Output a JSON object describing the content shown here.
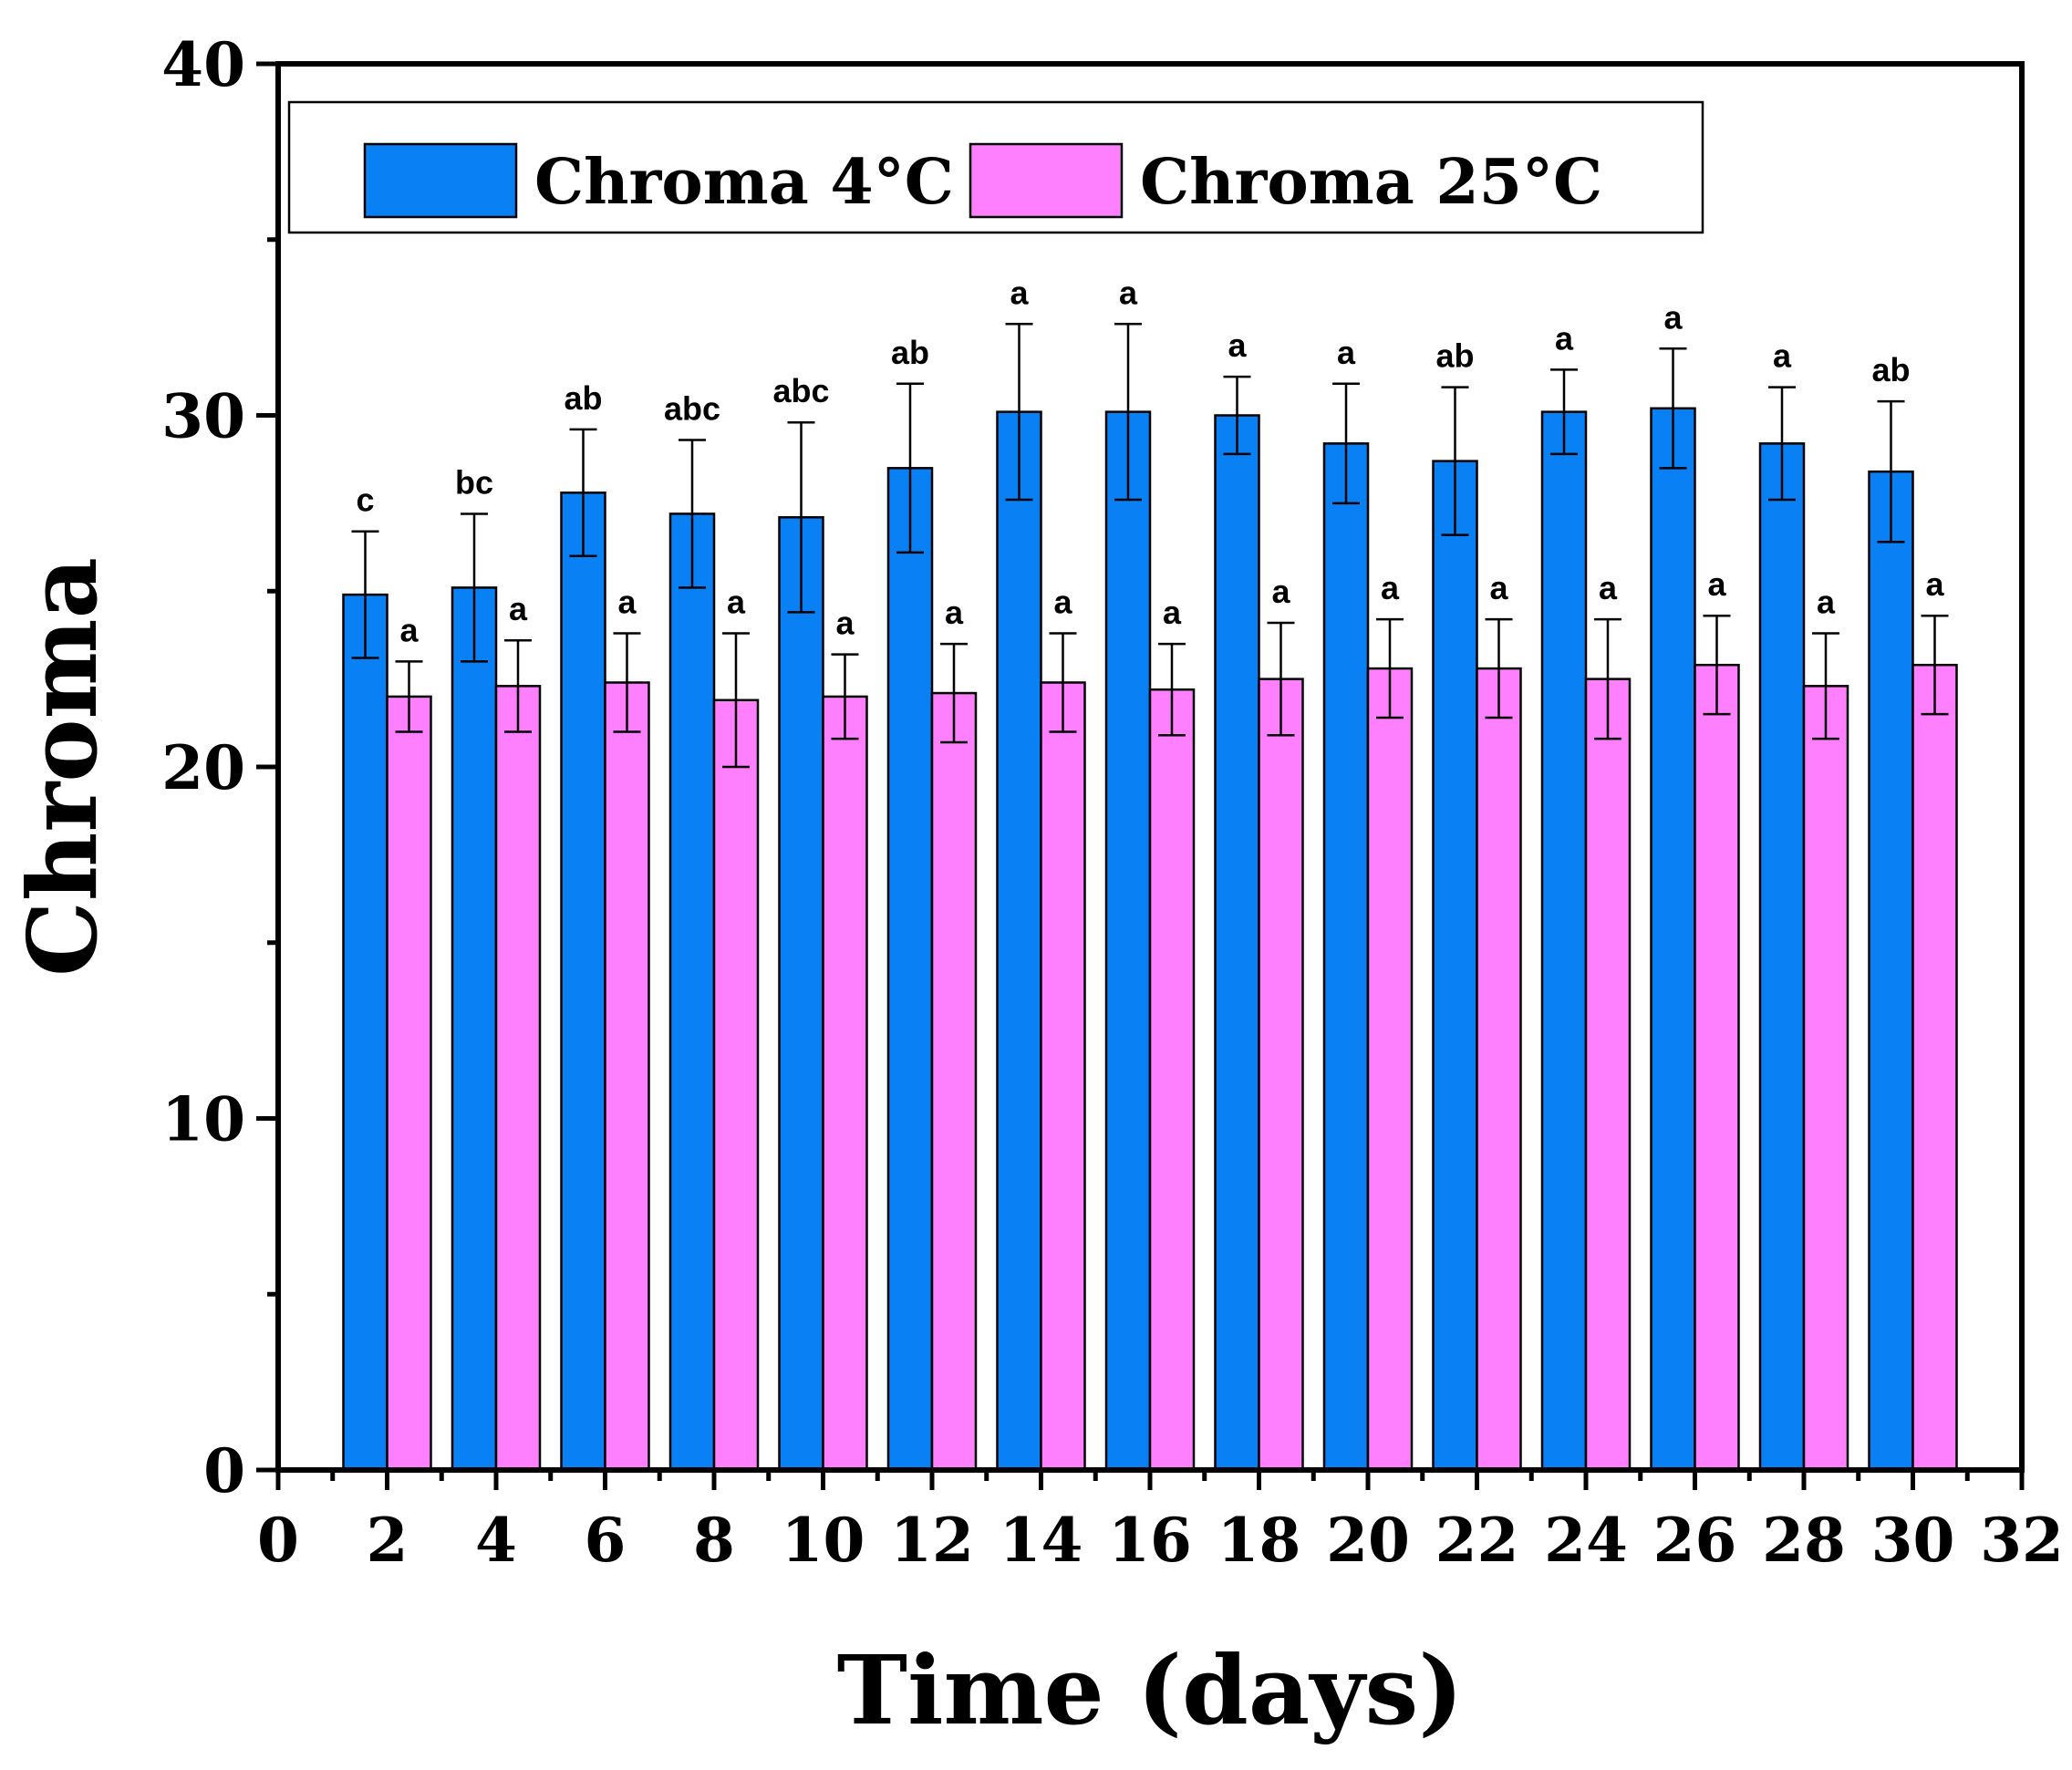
{
  "chart_data": {
    "type": "bar",
    "title": "",
    "xlabel": "Time (days)",
    "ylabel": "Chroma",
    "xlim": [
      0,
      32
    ],
    "ylim": [
      0,
      40
    ],
    "x_ticks": [
      "0",
      "2",
      "4",
      "6",
      "8",
      "10",
      "12",
      "14",
      "16",
      "18",
      "20",
      "22",
      "24",
      "26",
      "28",
      "30",
      "32"
    ],
    "y_ticks": [
      "0",
      "10",
      "20",
      "30",
      "40"
    ],
    "categories": [
      2,
      4,
      6,
      8,
      10,
      12,
      14,
      16,
      18,
      20,
      22,
      24,
      26,
      28,
      30
    ],
    "legend_position": "top",
    "series": [
      {
        "name": "Chroma 4°C",
        "color": "#0a80f5",
        "values": [
          24.9,
          25.1,
          27.8,
          27.2,
          27.1,
          28.5,
          30.1,
          30.1,
          30.0,
          29.2,
          28.7,
          30.1,
          30.2,
          29.2,
          28.4
        ],
        "errors": [
          1.8,
          2.1,
          1.8,
          2.1,
          2.7,
          2.4,
          2.5,
          2.5,
          1.1,
          1.7,
          2.1,
          1.2,
          1.7,
          1.6,
          2.0
        ],
        "significance": [
          "c",
          "bc",
          "ab",
          "abc",
          "abc",
          "ab",
          "a",
          "a",
          "a",
          "a",
          "ab",
          "a",
          "a",
          "a",
          "ab"
        ]
      },
      {
        "name": "Chroma 25°C",
        "color": "#ff80ff",
        "values": [
          22.0,
          22.3,
          22.4,
          21.9,
          22.0,
          22.1,
          22.4,
          22.2,
          22.5,
          22.8,
          22.8,
          22.5,
          22.9,
          22.3,
          22.9
        ],
        "errors": [
          1.0,
          1.3,
          1.4,
          1.9,
          1.2,
          1.4,
          1.4,
          1.3,
          1.6,
          1.4,
          1.4,
          1.7,
          1.4,
          1.5,
          1.4
        ],
        "significance": [
          "a",
          "a",
          "a",
          "a",
          "a",
          "a",
          "a",
          "a",
          "a",
          "a",
          "a",
          "a",
          "a",
          "a",
          "a"
        ]
      }
    ]
  }
}
